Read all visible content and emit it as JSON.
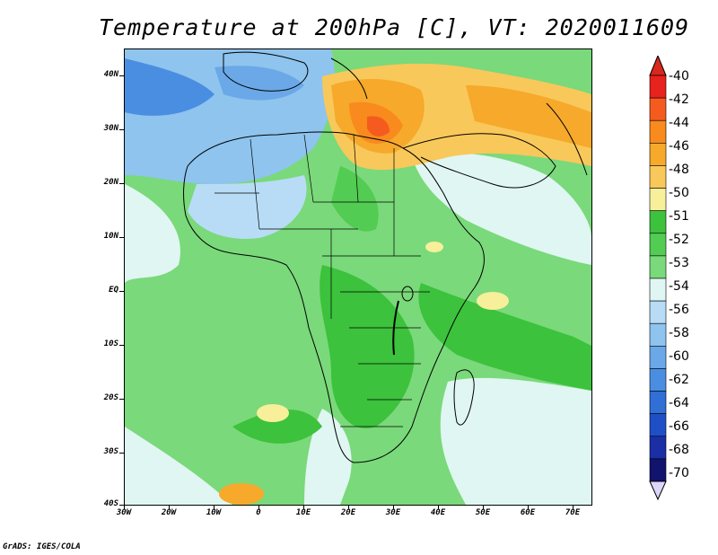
{
  "title": "Temperature at 200hPa [C], VT: 2020011609",
  "credit": "GrADS: IGES/COLA",
  "lat_labels": [
    "40N",
    "30N",
    "20N",
    "10N",
    "EQ",
    "10S",
    "20S",
    "30S",
    "40S"
  ],
  "lon_labels": [
    "30W",
    "20W",
    "10W",
    "0",
    "10E",
    "20E",
    "30E",
    "40E",
    "50E",
    "60E",
    "70E"
  ],
  "legend": {
    "labels": [
      "-40",
      "-42",
      "-44",
      "-46",
      "-48",
      "-50",
      "-51",
      "-52",
      "-53",
      "-54",
      "-56",
      "-58",
      "-60",
      "-62",
      "-64",
      "-66",
      "-68",
      "-70"
    ],
    "colors": [
      "#e8221c",
      "#f55b1e",
      "#f88a1e",
      "#f6a92b",
      "#f8c85a",
      "#f7ef9a",
      "#3cc23c",
      "#52cc52",
      "#7ad97a",
      "#e0f6f2",
      "#b8dcf6",
      "#8ec4ee",
      "#6aa8e8",
      "#4a8ee2",
      "#2f6fd6",
      "#1f4fc6",
      "#1a2fa6",
      "#12136e"
    ],
    "top_arrow_color": "#d8281e",
    "bottom_arrow_color": "#dcd6f8"
  },
  "map_colors": {
    "base": "#7ad97a",
    "ocean_light": "#e0f6f2",
    "green_dark": "#3cc23c",
    "blue_light": "#b8dcf6",
    "blue_mid": "#8ec4ee",
    "blue_dark": "#4a8ee2",
    "orange": "#f6a92b",
    "orange_dark": "#f88a1e",
    "red_orange": "#f55b1e",
    "yellow": "#f7ef9a"
  }
}
